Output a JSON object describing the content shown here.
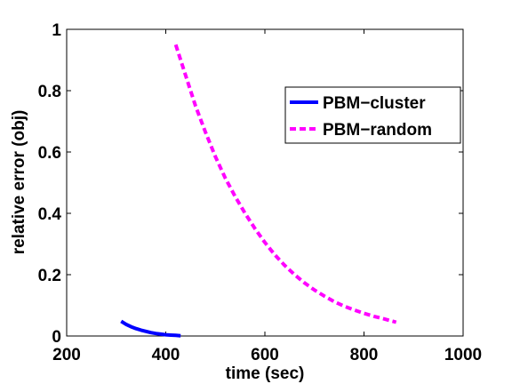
{
  "chart_data": {
    "type": "line",
    "title": "",
    "xlabel": "time (sec)",
    "ylabel": "relative error (obj)",
    "xlim": [
      200,
      1000
    ],
    "ylim": [
      0,
      1
    ],
    "xticks": [
      200,
      400,
      600,
      800,
      1000
    ],
    "yticks": [
      0,
      0.2,
      0.4,
      0.6,
      0.8,
      1
    ],
    "xtick_labels": [
      "200",
      "400",
      "600",
      "800",
      "1000"
    ],
    "ytick_labels": [
      "0",
      "0.2",
      "0.4",
      "0.6",
      "0.8",
      "1"
    ],
    "grid": false,
    "legend_position": "top-right",
    "series": [
      {
        "name": "PBM−cluster",
        "color": "#0000ff",
        "style": "solid",
        "x": [
          310,
          320,
          330,
          340,
          350,
          360,
          370,
          380,
          390,
          400,
          410,
          420,
          430
        ],
        "y": [
          0.048,
          0.038,
          0.03,
          0.024,
          0.019,
          0.015,
          0.011,
          0.008,
          0.006,
          0.004,
          0.003,
          0.002,
          0.001
        ]
      },
      {
        "name": "PBM−random",
        "color": "#ff00ff",
        "style": "dashed",
        "x": [
          420,
          440,
          460,
          480,
          500,
          520,
          540,
          560,
          580,
          600,
          620,
          640,
          660,
          680,
          700,
          720,
          740,
          760,
          780,
          800,
          820,
          840,
          865
        ],
        "y": [
          0.95,
          0.85,
          0.75,
          0.665,
          0.585,
          0.515,
          0.455,
          0.4,
          0.35,
          0.305,
          0.265,
          0.23,
          0.2,
          0.173,
          0.15,
          0.13,
          0.112,
          0.097,
          0.085,
          0.074,
          0.064,
          0.056,
          0.045
        ]
      }
    ]
  }
}
